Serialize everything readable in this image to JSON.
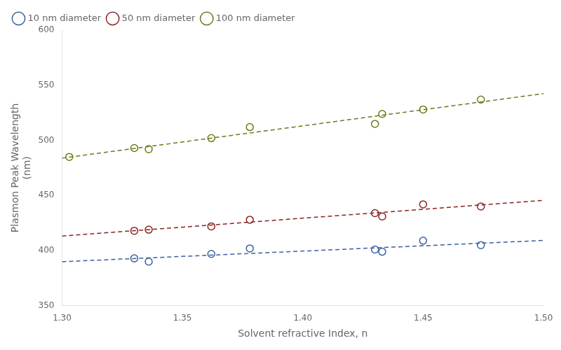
{
  "chart_data": {
    "type": "scatter",
    "xlabel": "Solvent refractive Index, n",
    "ylabel": "Plasmon Peak Wavelength\n(nm)",
    "xlim": [
      1.3,
      1.5
    ],
    "ylim": [
      350,
      600
    ],
    "xticks": [
      {
        "value": 1.3,
        "label": "1.30"
      },
      1.35,
      {
        "value": 1.4,
        "label": "1.40"
      },
      1.45,
      {
        "value": 1.5,
        "label": "1.50"
      }
    ],
    "yticks": [
      350,
      400,
      450,
      500,
      550,
      600
    ],
    "grid": false,
    "legend": "upper left",
    "series": [
      {
        "name": "10 nm diameter",
        "color": "#3B5FA0",
        "marker": "circle",
        "x": [
          1.33,
          1.336,
          1.362,
          1.378,
          1.43,
          1.433,
          1.45,
          1.474
        ],
        "values": [
          393,
          390,
          397,
          402,
          401,
          399,
          409,
          405
        ],
        "fit": {
          "x": [
            1.3,
            1.5
          ],
          "values": [
            389.94,
            409.23
          ]
        }
      },
      {
        "name": "50 nm diameter",
        "color": "#8B2222",
        "marker": "circle",
        "x": [
          1.33,
          1.336,
          1.362,
          1.378,
          1.43,
          1.433,
          1.45,
          1.474
        ],
        "values": [
          418,
          419,
          422,
          428,
          434,
          431,
          442,
          440
        ],
        "fit": {
          "x": [
            1.3,
            1.5
          ],
          "values": [
            413.21,
            445.58
          ]
        }
      },
      {
        "name": "100 nm diameter",
        "color": "#6B7A1A",
        "marker": "circle",
        "x": [
          1.303,
          1.33,
          1.336,
          1.362,
          1.378,
          1.43,
          1.433,
          1.45,
          1.474
        ],
        "values": [
          485,
          493,
          492,
          502,
          512,
          515,
          524,
          528,
          537
        ],
        "fit": {
          "x": [
            1.3,
            1.5
          ],
          "values": [
            483.9,
            542.42
          ]
        }
      }
    ]
  }
}
